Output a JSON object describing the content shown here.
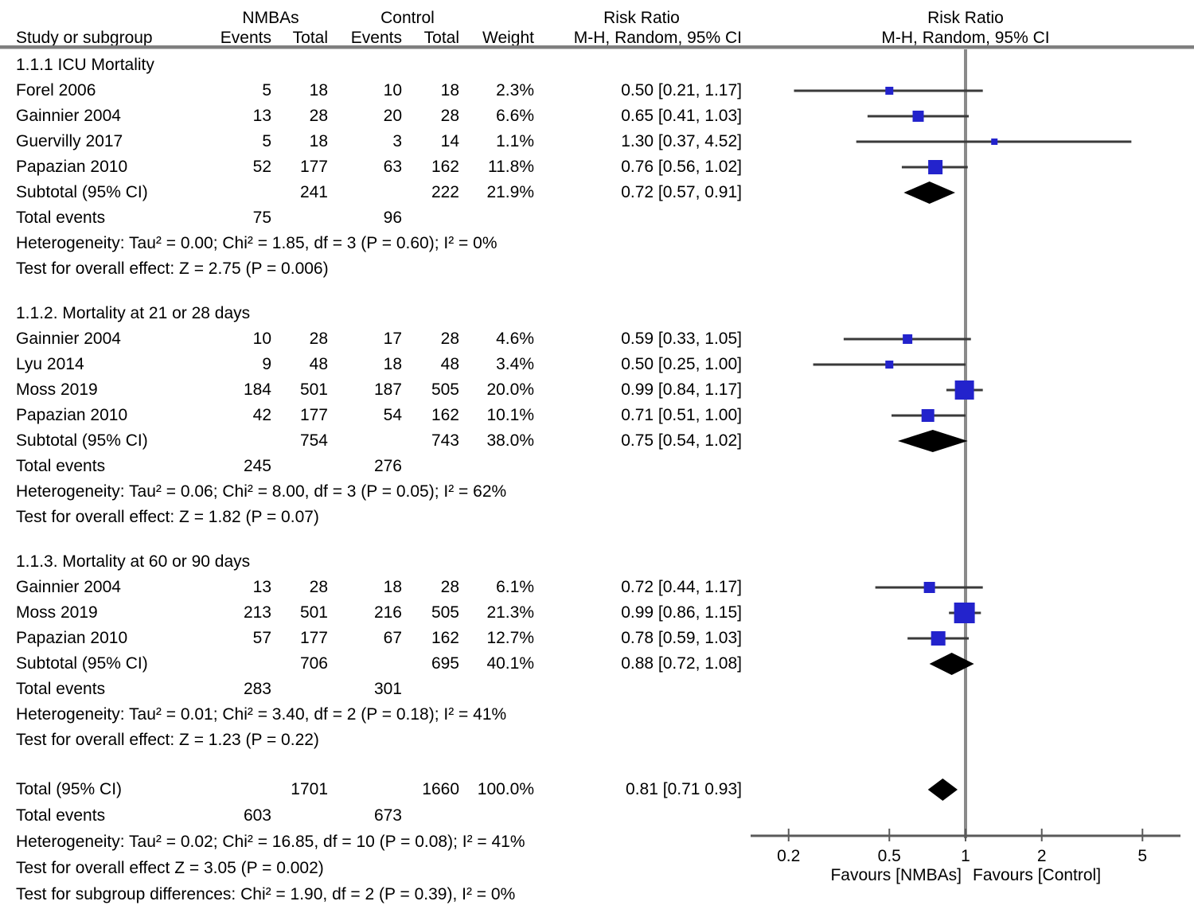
{
  "header": {
    "col_study": "Study or subgroup",
    "group1": "NMBAs",
    "group2": "Control",
    "col_events1": "Events",
    "col_total1": "Total",
    "col_events2": "Events",
    "col_total2": "Total",
    "col_weight": "Weight",
    "col_rr_title": "Risk Ratio",
    "col_rr_method": "M-H, Random, 95% CI",
    "plot_title_line1": "Risk Ratio",
    "plot_title_line2": "M-H, Random, 95% CI"
  },
  "chart_data": {
    "type": "forest",
    "scale": "log",
    "effect_measure": "Risk Ratio",
    "axis_ticks": [
      0.2,
      0.5,
      1,
      2,
      5
    ],
    "favours_left": "Favours [NMBAs]",
    "favours_right": "Favours [Control]",
    "sections": [
      {
        "label": "1.1.1 ICU Mortality",
        "studies": [
          {
            "study": "Forel 2006",
            "e1": "5",
            "t1": "18",
            "e2": "10",
            "t2": "18",
            "weight": "2.3%",
            "rr_text": "0.50 [0.21, 1.17]",
            "rr": 0.5,
            "lo": 0.21,
            "hi": 1.17,
            "w": 2.3
          },
          {
            "study": "Gainnier 2004",
            "e1": "13",
            "t1": "28",
            "e2": "20",
            "t2": "28",
            "weight": "6.6%",
            "rr_text": "0.65 [0.41, 1.03]",
            "rr": 0.65,
            "lo": 0.41,
            "hi": 1.03,
            "w": 6.6
          },
          {
            "study": "Guervilly 2017",
            "e1": "5",
            "t1": "18",
            "e2": "3",
            "t2": "14",
            "weight": "1.1%",
            "rr_text": "1.30 [0.37, 4.52]",
            "rr": 1.3,
            "lo": 0.37,
            "hi": 4.52,
            "w": 1.1
          },
          {
            "study": "Papazian 2010",
            "e1": "52",
            "t1": "177",
            "e2": "63",
            "t2": "162",
            "weight": "11.8%",
            "rr_text": "0.76 [0.56, 1.02]",
            "rr": 0.76,
            "lo": 0.56,
            "hi": 1.02,
            "w": 11.8
          }
        ],
        "subtotal": {
          "label": "Subtotal (95% CI)",
          "t1": "241",
          "t2": "222",
          "weight": "21.9%",
          "rr_text": "0.72 [0.57, 0.91]",
          "rr": 0.72,
          "lo": 0.57,
          "hi": 0.91
        },
        "total_events": {
          "label": "Total events",
          "e1": "75",
          "e2": "96"
        },
        "heterogeneity": "Heterogeneity: Tau² = 0.00; Chi² = 1.85, df = 3 (P = 0.60); I² = 0%",
        "overall": "Test for overall effect: Z = 2.75 (P = 0.006)"
      },
      {
        "label": "1.1.2. Mortality at 21 or 28 days",
        "studies": [
          {
            "study": "Gainnier 2004",
            "e1": "10",
            "t1": "28",
            "e2": "17",
            "t2": "28",
            "weight": "4.6%",
            "rr_text": "0.59 [0.33, 1.05]",
            "rr": 0.59,
            "lo": 0.33,
            "hi": 1.05,
            "w": 4.6
          },
          {
            "study": "Lyu 2014",
            "e1": "9",
            "t1": "48",
            "e2": "18",
            "t2": "48",
            "weight": "3.4%",
            "rr_text": "0.50 [0.25, 1.00]",
            "rr": 0.5,
            "lo": 0.25,
            "hi": 1.0,
            "w": 3.4
          },
          {
            "study": "Moss 2019",
            "e1": "184",
            "t1": "501",
            "e2": "187",
            "t2": "505",
            "weight": "20.0%",
            "rr_text": "0.99 [0.84, 1.17]",
            "rr": 0.99,
            "lo": 0.84,
            "hi": 1.17,
            "w": 20.0
          },
          {
            "study": "Papazian 2010",
            "e1": "42",
            "t1": "177",
            "e2": "54",
            "t2": "162",
            "weight": "10.1%",
            "rr_text": "0.71 [0.51, 1.00]",
            "rr": 0.71,
            "lo": 0.51,
            "hi": 1.0,
            "w": 10.1
          }
        ],
        "subtotal": {
          "label": "Subtotal (95% CI)",
          "t1": "754",
          "t2": "743",
          "weight": "38.0%",
          "rr_text": "0.75 [0.54, 1.02]",
          "rr": 0.75,
          "lo": 0.54,
          "hi": 1.02
        },
        "total_events": {
          "label": "Total events",
          "e1": "245",
          "e2": "276"
        },
        "heterogeneity": "Heterogeneity: Tau² = 0.06; Chi² = 8.00, df = 3 (P = 0.05); I² = 62%",
        "overall": "Test for overall effect: Z = 1.82 (P = 0.07)"
      },
      {
        "label": "1.1.3. Mortality at 60 or 90 days",
        "studies": [
          {
            "study": "Gainnier 2004",
            "e1": "13",
            "t1": "28",
            "e2": "18",
            "t2": "28",
            "weight": "6.1%",
            "rr_text": "0.72 [0.44, 1.17]",
            "rr": 0.72,
            "lo": 0.44,
            "hi": 1.17,
            "w": 6.1
          },
          {
            "study": "Moss 2019",
            "e1": "213",
            "t1": "501",
            "e2": "216",
            "t2": "505",
            "weight": "21.3%",
            "rr_text": "0.99 [0.86, 1.15]",
            "rr": 0.99,
            "lo": 0.86,
            "hi": 1.15,
            "w": 21.3
          },
          {
            "study": "Papazian 2010",
            "e1": "57",
            "t1": "177",
            "e2": "67",
            "t2": "162",
            "weight": "12.7%",
            "rr_text": "0.78 [0.59, 1.03]",
            "rr": 0.78,
            "lo": 0.59,
            "hi": 1.03,
            "w": 12.7
          }
        ],
        "subtotal": {
          "label": "Subtotal (95% CI)",
          "t1": "706",
          "t2": "695",
          "weight": "40.1%",
          "rr_text": "0.88 [0.72, 1.08]",
          "rr": 0.88,
          "lo": 0.72,
          "hi": 1.08
        },
        "total_events": {
          "label": "Total events",
          "e1": "283",
          "e2": "301"
        },
        "heterogeneity": "Heterogeneity: Tau² = 0.01; Chi² = 3.40, df = 2 (P = 0.18); I² = 41%",
        "overall": "Test for overall effect: Z = 1.23 (P = 0.22)"
      }
    ],
    "total": {
      "label": "Total (95% CI)",
      "t1": "1701",
      "t2": "1660",
      "weight": "100.0%",
      "rr_text": "0.81 [0.71 0.93]",
      "rr": 0.81,
      "lo": 0.71,
      "hi": 0.93,
      "total_events": {
        "label": "Total events",
        "e1": "603",
        "e2": "673"
      },
      "heterogeneity": "Heterogeneity: Tau² = 0.02; Chi² = 16.85, df = 10 (P = 0.08); I² = 41%",
      "overall": "Test for overall effect Z = 3.05 (P = 0.002)",
      "subgroup": "Test for subgroup differences: Chi² = 1.90, df = 2 (P = 0.39), I² = 0%"
    }
  },
  "colors": {
    "square": "#2323cc",
    "diamond": "#000000",
    "ci_line": "#3a3a3a",
    "center_line": "#8a8a8a",
    "axis": "#5a5a5a",
    "divider": "#7f7f7f"
  }
}
